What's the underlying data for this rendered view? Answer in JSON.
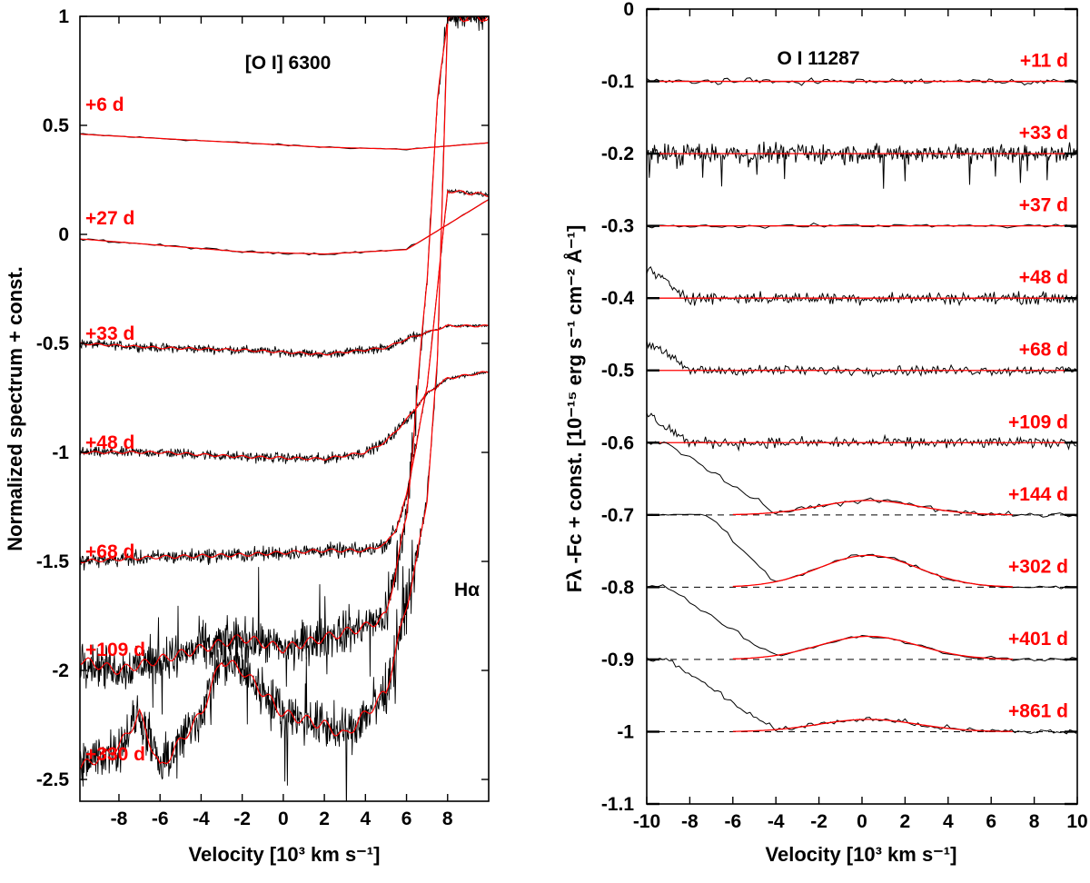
{
  "chart_data": [
    {
      "type": "line",
      "title": "[O I] 6300",
      "xlabel": "Velocity [10³ km s⁻¹]",
      "ylabel": "Normalized spectrum + const.",
      "xlim": [
        -9.9,
        10
      ],
      "ylim": [
        -2.6,
        1
      ],
      "xticks": [
        "-8",
        "-6",
        "-4",
        "-2",
        "0",
        "2",
        "4",
        "6",
        "8"
      ],
      "yticks": [
        "1",
        "0.5",
        "0",
        "-0.5",
        "-1",
        "-1.5",
        "-2",
        "-2.5"
      ],
      "annotation": "Hα",
      "colors": {
        "data": "#000000",
        "model": "#ff0000",
        "label": "#ff0000"
      },
      "series": [
        {
          "name": "+6 d",
          "label_y": 0.6,
          "x": [
            -10,
            -6,
            -2,
            2,
            6,
            10
          ],
          "values": [
            0.46,
            0.44,
            0.42,
            0.4,
            0.39,
            0.42
          ]
        },
        {
          "name": "+27 d",
          "label_y": 0.08,
          "x": [
            -10,
            -6,
            -2,
            2,
            6,
            10
          ],
          "values": [
            -0.02,
            -0.05,
            -0.08,
            -0.09,
            -0.07,
            0.16
          ]
        },
        {
          "name": "+33 d",
          "label_y": -0.45,
          "x": [
            -10,
            -6,
            -2,
            2,
            5,
            6,
            7,
            8,
            10
          ],
          "values": [
            -0.5,
            -0.52,
            -0.53,
            -0.55,
            -0.52,
            -0.48,
            -0.45,
            -0.42,
            -0.42
          ]
        },
        {
          "name": "+48 d",
          "label_y": -0.95,
          "x": [
            -10,
            -6,
            -2,
            2,
            4,
            5,
            6,
            7,
            8,
            10
          ],
          "values": [
            -1.0,
            -1.0,
            -1.02,
            -1.03,
            -1.0,
            -0.95,
            -0.85,
            -0.73,
            -0.66,
            -0.63
          ]
        },
        {
          "name": "+68 d",
          "label_y": -1.45,
          "x": [
            -10,
            -6,
            -2,
            2,
            4,
            5,
            5.5,
            6,
            7,
            8,
            10
          ],
          "values": [
            -1.5,
            -1.48,
            -1.47,
            -1.45,
            -1.45,
            -1.42,
            -1.35,
            -1.2,
            -0.7,
            0.2,
            0.18
          ]
        },
        {
          "name": "+109 d",
          "label_y": -1.9,
          "x": [
            -10,
            -8,
            -6,
            -4,
            -2,
            0,
            2,
            4,
            5,
            6,
            7,
            7.5,
            8
          ],
          "values": [
            -1.95,
            -2.0,
            -1.95,
            -1.9,
            -1.85,
            -1.9,
            -1.85,
            -1.8,
            -1.75,
            -1.3,
            -0.2,
            0.6,
            1.0
          ]
        },
        {
          "name": "+330 d",
          "label_y": -2.38,
          "x": [
            -10,
            -8,
            -7,
            -6,
            -4,
            -3,
            -2,
            0,
            2,
            3,
            4,
            5,
            6,
            6.5,
            7,
            7.5,
            8
          ],
          "values": [
            -2.45,
            -2.35,
            -2.2,
            -2.45,
            -2.2,
            -1.95,
            -2.0,
            -2.2,
            -2.25,
            -2.3,
            -2.2,
            -2.1,
            -1.7,
            -1.5,
            -1.2,
            -0.6,
            1.0
          ]
        }
      ]
    },
    {
      "type": "line",
      "title": "O I 11287",
      "xlabel": "Velocity [10³ km s⁻¹]",
      "ylabel": "Fλ -Fc + const. [10⁻¹⁵ erg s⁻¹ cm⁻² Å⁻¹]",
      "xlim": [
        -10,
        10
      ],
      "ylim": [
        -1.1,
        0
      ],
      "xticks": [
        "-10",
        "-8",
        "-6",
        "-4",
        "-2",
        "0",
        "2",
        "4",
        "6",
        "8",
        "10"
      ],
      "yticks": [
        "0",
        "-0.1",
        "-0.2",
        "-0.3",
        "-0.4",
        "-0.5",
        "-0.6",
        "-0.7",
        "-0.8",
        "-0.9",
        "-1",
        "-1.1"
      ],
      "colors": {
        "data": "#000000",
        "model": "#ff0000",
        "label": "#ff0000"
      },
      "series": [
        {
          "name": "+11 d",
          "baseline": -0.1,
          "peak": 0,
          "sigma": 2.5,
          "dashed": false
        },
        {
          "name": "+33 d",
          "baseline": -0.2,
          "peak": 0,
          "sigma": 2.5,
          "dashed": false
        },
        {
          "name": "+37 d",
          "baseline": -0.3,
          "peak": 0,
          "sigma": 2.5,
          "dashed": false
        },
        {
          "name": "+48 d",
          "baseline": -0.4,
          "peak": 0,
          "sigma": 2.5,
          "dashed": false
        },
        {
          "name": "+68 d",
          "baseline": -0.5,
          "peak": 0,
          "sigma": 2.5,
          "dashed": false
        },
        {
          "name": "+109 d",
          "baseline": -0.6,
          "peak": 0,
          "sigma": 2.5,
          "dashed": false
        },
        {
          "name": "+144 d",
          "baseline": -0.7,
          "peak": 0.02,
          "sigma": 2.3,
          "dashed": true
        },
        {
          "name": "+302 d",
          "baseline": -0.8,
          "peak": 0.044,
          "sigma": 2.3,
          "dashed": true
        },
        {
          "name": "+401 d",
          "baseline": -0.9,
          "peak": 0.032,
          "sigma": 2.3,
          "dashed": true
        },
        {
          "name": "+861 d",
          "baseline": -1.0,
          "peak": 0.017,
          "sigma": 2.3,
          "dashed": true
        }
      ]
    }
  ]
}
